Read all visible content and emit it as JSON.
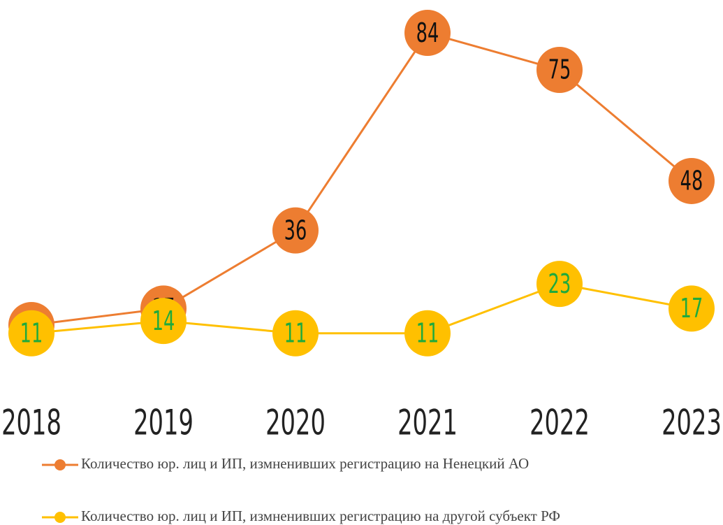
{
  "chart_data": {
    "type": "line",
    "categories": [
      "2018",
      "2019",
      "2020",
      "2021",
      "2022",
      "2023"
    ],
    "series": [
      {
        "name": "Количество юр. лиц и ИП, измненивших регистрацию на Ненецкий АО",
        "color": "#ed7d31",
        "label_color": "#111111",
        "values": [
          13,
          17,
          36,
          84,
          75,
          48
        ]
      },
      {
        "name": "Количество юр. лиц и ИП, измненивших регистрацию на другой субъект РФ",
        "color": "#ffc000",
        "label_color": "#1faa3c",
        "values": [
          11,
          14,
          11,
          11,
          23,
          17
        ]
      }
    ],
    "ylim": [
      0,
      90
    ]
  }
}
